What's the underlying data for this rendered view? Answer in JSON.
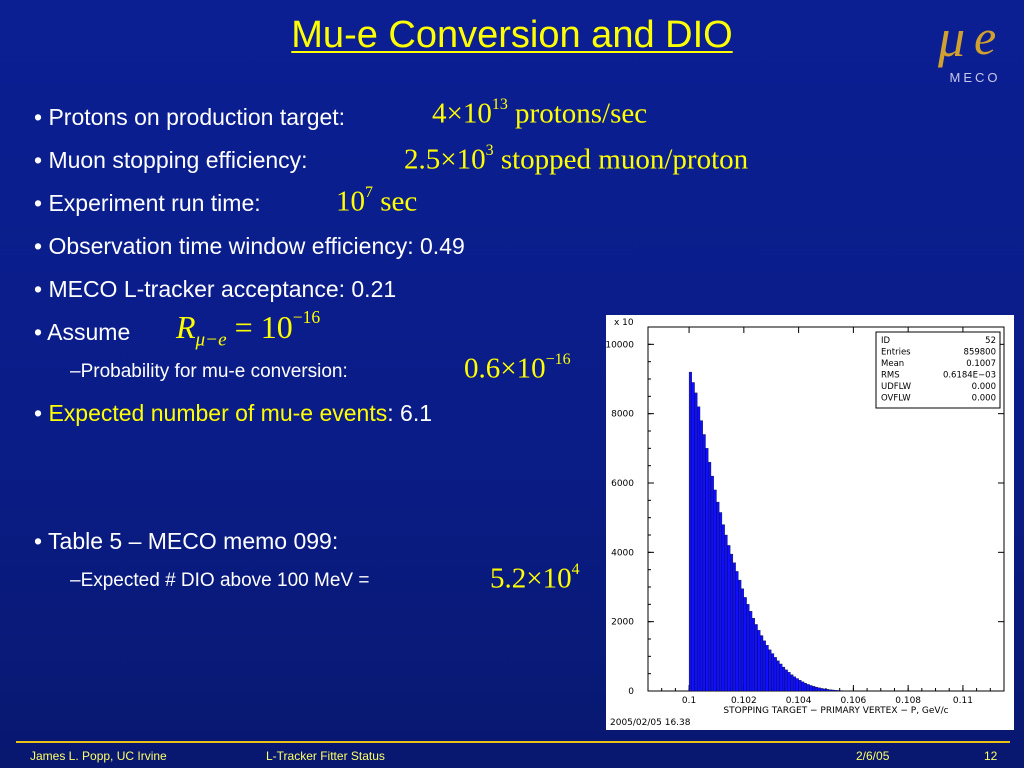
{
  "title": "Mu-e Conversion and DIO",
  "logo": {
    "mu": "μ",
    "e": "e",
    "caption": "MECO"
  },
  "bullets": {
    "protons": {
      "label": "• Protons on production target:",
      "coef": "4×10",
      "exp": "13",
      "unit": "protons/sec"
    },
    "muon": {
      "label": "• Muon stopping efficiency:",
      "coef": "2.5×10",
      "exp": "3",
      "unit": "stopped muon/proton"
    },
    "runtime": {
      "label": "• Experiment run time:",
      "coef": "10",
      "exp": "7",
      "unit": "sec"
    },
    "window": "• Observation time window efficiency: 0.49",
    "acceptance": "• MECO L-tracker acceptance: 0.21",
    "assume": {
      "label": "• Assume",
      "symbol": "R",
      "subscript": "μ−e",
      "rhs": "= 10",
      "exp": "−16"
    },
    "probability": {
      "label": "–Probability for mu-e conversion:",
      "coef": "0.6×10",
      "exp": "−16"
    },
    "expected": {
      "bullet": "•",
      "label": "Expected number of mu-e events",
      "value": ": 6.1"
    },
    "table": "• Table 5 – MECO memo 099:",
    "dio": {
      "label": "–Expected # DIO above 100 MeV =",
      "coef": "5.2×10",
      "exp": "4"
    }
  },
  "footer": {
    "author": "James L. Popp, UC Irvine",
    "talk": "L-Tracker Fitter Status",
    "date": "2/6/05",
    "page": "12"
  },
  "histogram": {
    "multiplier": "x 10",
    "xlabel": "STOPPING TARGET − PRIMARY VERTEX − P, GeV/c",
    "timestamp": "2005/02/05   16.38",
    "stats": [
      {
        "key": "ID",
        "value": "52"
      },
      {
        "key": "Entries",
        "value": "859800"
      },
      {
        "key": "Mean",
        "value": "0.1007"
      },
      {
        "key": "RMS",
        "value": "0.6184E−03"
      },
      {
        "key": "UDFLW",
        "value": "0.000"
      },
      {
        "key": "OVFLW",
        "value": "0.000"
      }
    ]
  },
  "chart_data": {
    "type": "bar",
    "title": "",
    "xlabel": "STOPPING TARGET − PRIMARY VERTEX − P, GeV/c",
    "ylabel": "",
    "xlim": [
      0.0985,
      0.1115
    ],
    "ylim": [
      0,
      10500
    ],
    "x_ticks": [
      "0.1",
      "0.102",
      "0.104",
      "0.106",
      "0.108",
      "0.11"
    ],
    "y_ticks": [
      "0",
      "2000",
      "4000",
      "6000",
      "8000",
      "10000"
    ],
    "bin_start": 0.1,
    "bin_width": 0.0001,
    "values": [
      9200,
      8900,
      8600,
      8200,
      7800,
      7400,
      7000,
      6600,
      6200,
      5800,
      5450,
      5150,
      4800,
      4500,
      4200,
      3950,
      3700,
      3450,
      3200,
      2950,
      2700,
      2500,
      2300,
      2100,
      1920,
      1750,
      1600,
      1450,
      1320,
      1190,
      1080,
      970,
      870,
      780,
      690,
      610,
      540,
      470,
      410,
      360,
      310,
      265,
      225,
      190,
      160,
      135,
      112,
      92,
      75,
      60,
      48,
      38,
      30,
      23,
      17,
      13,
      10,
      8,
      6,
      5
    ]
  }
}
